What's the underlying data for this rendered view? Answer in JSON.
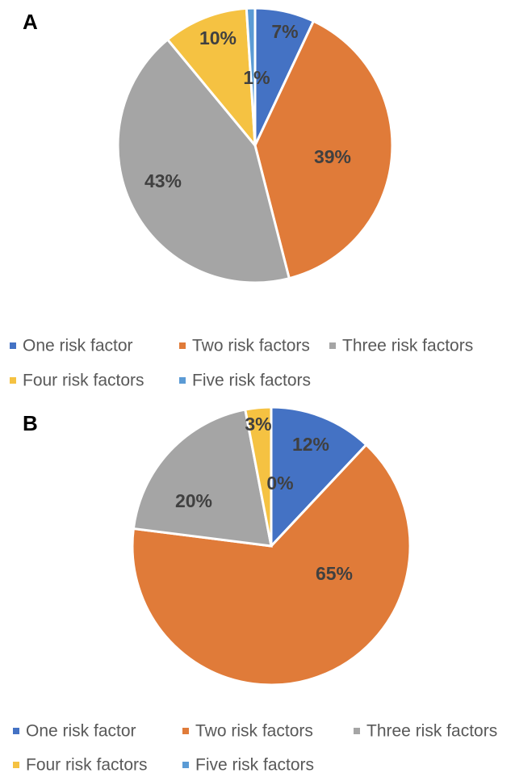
{
  "chart_data": [
    {
      "type": "pie",
      "panel_label": "A",
      "categories": [
        "One risk factor",
        "Two risk factors",
        "Three risk factors",
        "Four risk factors",
        "Five risk factors"
      ],
      "values": [
        7,
        39,
        43,
        10,
        1
      ],
      "data_labels": [
        "7%",
        "39%",
        "43%",
        "10%",
        "1%"
      ],
      "colors": [
        "#4472c4",
        "#e07b39",
        "#a5a5a5",
        "#f5c242",
        "#5b9bd5"
      ],
      "legend": "bottom"
    },
    {
      "type": "pie",
      "panel_label": "B",
      "categories": [
        "One risk factor",
        "Two risk factors",
        "Three risk factors",
        "Four risk factors",
        "Five risk factors"
      ],
      "values": [
        12,
        65,
        20,
        3,
        0
      ],
      "data_labels": [
        "12%",
        "65%",
        "20%",
        "3%",
        "0%"
      ],
      "colors": [
        "#4472c4",
        "#e07b39",
        "#a5a5a5",
        "#f5c242",
        "#5b9bd5"
      ],
      "legend": "bottom"
    }
  ]
}
